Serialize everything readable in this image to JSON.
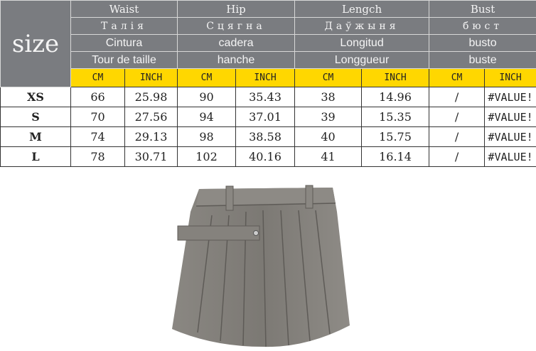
{
  "size_label": "size",
  "headers": [
    {
      "en": "Waist",
      "be": "Талія",
      "es": "Cintura",
      "fr": "Tour de taille"
    },
    {
      "en": "Hip",
      "be": "Сцягна",
      "es": "cadera",
      "fr": "hanche"
    },
    {
      "en": "Lengch",
      "be": "Даўжыня",
      "es": "Longitud",
      "fr": "Longgueur"
    },
    {
      "en": "Bust",
      "be": "бюст",
      "es": "busto",
      "fr": "buste"
    }
  ],
  "units": {
    "cm": "CM",
    "inch": "INCH"
  },
  "rows": [
    {
      "size": "XS",
      "v": [
        "66",
        "25.98",
        "90",
        "35.43",
        "38",
        "14.96",
        "/",
        "#VALUE!"
      ]
    },
    {
      "size": "S",
      "v": [
        "70",
        "27.56",
        "94",
        "37.01",
        "39",
        "15.35",
        "/",
        "#VALUE!"
      ]
    },
    {
      "size": "M",
      "v": [
        "74",
        "29.13",
        "98",
        "38.58",
        "40",
        "15.75",
        "/",
        "#VALUE!"
      ]
    },
    {
      "size": "L",
      "v": [
        "78",
        "30.71",
        "102",
        "40.16",
        "41",
        "16.14",
        "/",
        "#VALUE!"
      ]
    }
  ],
  "colors": {
    "header": "#7a7c80",
    "units": "#ffd700",
    "skirt": "#807d78"
  }
}
